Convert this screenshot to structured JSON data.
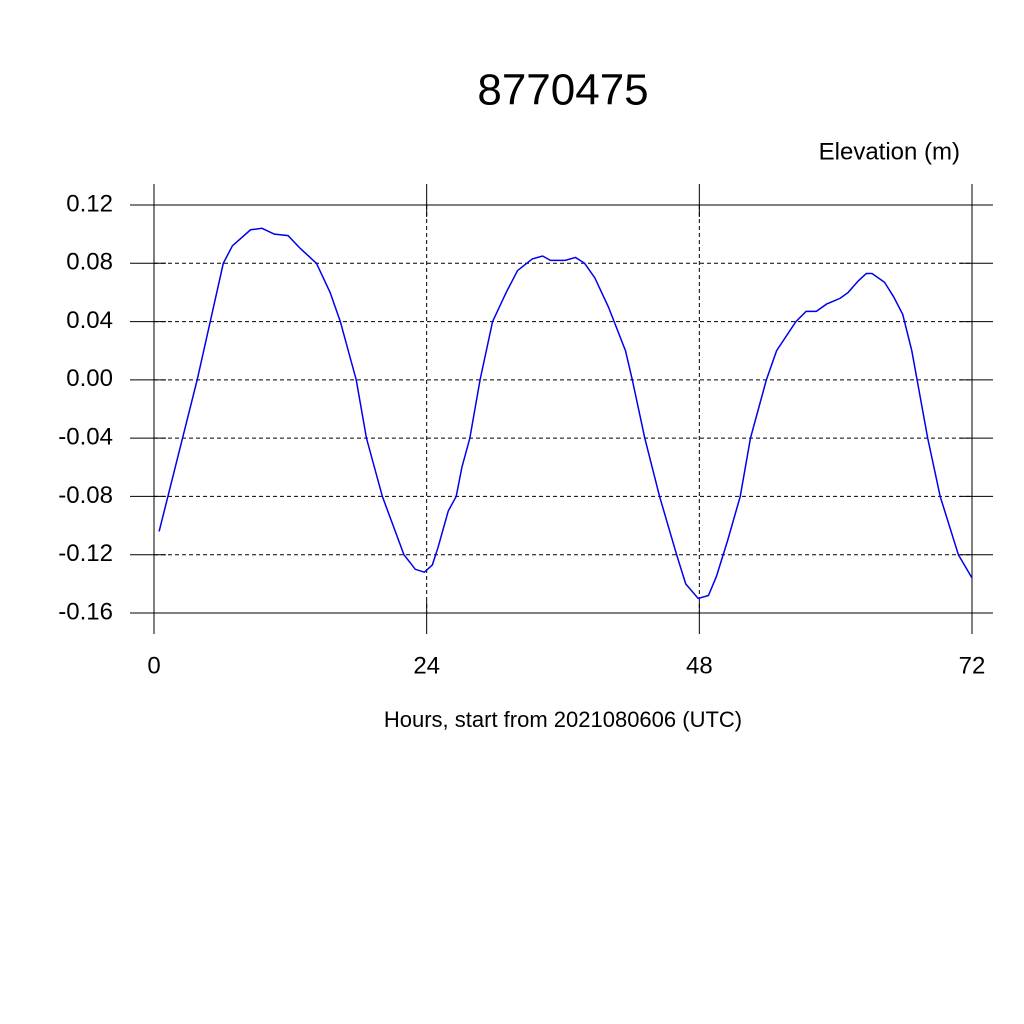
{
  "chart_data": {
    "type": "line",
    "title": "8770475",
    "y_label": "Elevation (m)",
    "x_label": "Hours, start from 2021080606 (UTC)",
    "xlim": [
      0,
      72
    ],
    "xticks": [
      0,
      24,
      48,
      72
    ],
    "ylim": [
      -0.16,
      0.12
    ],
    "yticks": [
      {
        "value": -0.16,
        "label": "-0.16"
      },
      {
        "value": -0.12,
        "label": "-0.12"
      },
      {
        "value": -0.08,
        "label": "-0.08"
      },
      {
        "value": -0.04,
        "label": "-0.04"
      },
      {
        "value": 0,
        "label": "0.00"
      },
      {
        "value": 0.04,
        "label": "0.04"
      },
      {
        "value": 0.08,
        "label": "0.08"
      },
      {
        "value": 0.12,
        "label": "0.12"
      }
    ],
    "grid": true,
    "series": [
      {
        "color": "#0000ee",
        "x": [
          0.45,
          3.8,
          6.1,
          6.9,
          8.5,
          9.5,
          10.6,
          11.8,
          12.9,
          14.3,
          15.5,
          16.4,
          17.8,
          18.7,
          20.1,
          22,
          23,
          23.8,
          24.5,
          25,
          25.9,
          26.6,
          27.1,
          27.8,
          28.7,
          29.8,
          31,
          32,
          33.3,
          34.2,
          34.9,
          36.2,
          37.1,
          37.9,
          38.8,
          40,
          41.5,
          42.1,
          43.2,
          44.5,
          46,
          46.8,
          47.9,
          48.8,
          49.5,
          50.5,
          51.6,
          52.5,
          53.2,
          53.9,
          54.8,
          56.5,
          57.4,
          58.3,
          59.2,
          60.4,
          61.1,
          62,
          62.7,
          63.2,
          64.3,
          65.1,
          65.9,
          66.7,
          68.1,
          69.2,
          70.8,
          72
        ],
        "values": [
          -0.104,
          0,
          0.08,
          0.092,
          0.103,
          0.104,
          0.1,
          0.099,
          0.09,
          0.08,
          0.06,
          0.04,
          0,
          -0.04,
          -0.08,
          -0.12,
          -0.13,
          -0.132,
          -0.127,
          -0.115,
          -0.09,
          -0.08,
          -0.06,
          -0.04,
          0,
          0.04,
          0.06,
          0.075,
          0.083,
          0.085,
          0.082,
          0.082,
          0.084,
          0.08,
          0.07,
          0.05,
          0.02,
          0,
          -0.04,
          -0.08,
          -0.12,
          -0.14,
          -0.15,
          -0.148,
          -0.135,
          -0.11,
          -0.08,
          -0.04,
          -0.02,
          0,
          0.02,
          0.04,
          0.047,
          0.047,
          0.052,
          0.056,
          0.06,
          0.068,
          0.073,
          0.073,
          0.067,
          0.057,
          0.045,
          0.02,
          -0.04,
          -0.08,
          -0.12,
          -0.136
        ]
      }
    ]
  }
}
